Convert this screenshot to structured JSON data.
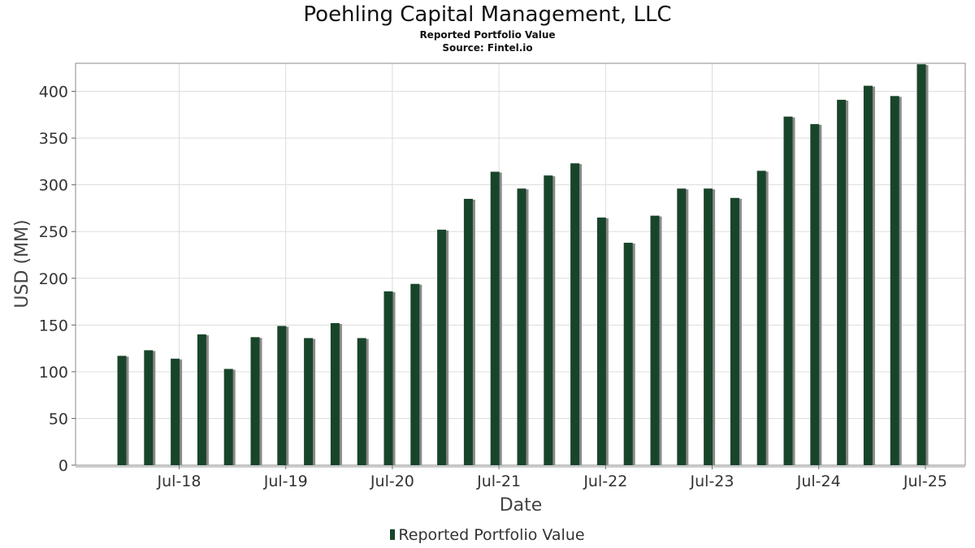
{
  "header": {
    "title": "Poehling Capital Management, LLC",
    "subtitle": "Reported Portfolio Value",
    "source": "Source: Fintel.io"
  },
  "legend": {
    "label": "Reported Portfolio Value"
  },
  "colors": {
    "bar": "#18452a",
    "shadow": "#8a8a8a",
    "grid": "#dddddd",
    "frame": "#888888"
  },
  "chart_data": {
    "type": "bar",
    "title": "Poehling Capital Management, LLC",
    "subtitle": "Reported Portfolio Value",
    "xlabel": "Date",
    "ylabel": "USD (MM)",
    "ylim": [
      0,
      430
    ],
    "yticks": [
      0,
      50,
      100,
      150,
      200,
      250,
      300,
      350,
      400
    ],
    "xticks": [
      "Jul-18",
      "Jul-19",
      "Jul-20",
      "Jul-21",
      "Jul-22",
      "Jul-23",
      "Jul-24",
      "Jul-25"
    ],
    "grid": true,
    "legend_position": "bottom",
    "series": [
      {
        "name": "Reported Portfolio Value",
        "values": [
          117,
          123,
          114,
          140,
          103,
          137,
          149,
          136,
          152,
          136,
          186,
          194,
          252,
          285,
          314,
          296,
          310,
          323,
          265,
          238,
          267,
          296,
          296,
          286,
          315,
          373,
          365,
          391,
          406,
          395,
          429
        ]
      }
    ]
  }
}
